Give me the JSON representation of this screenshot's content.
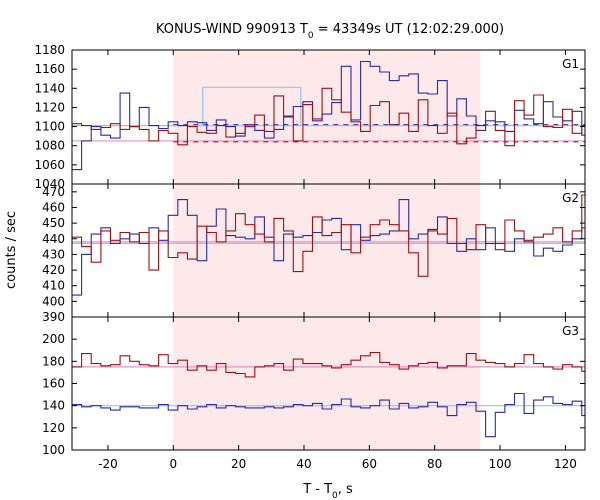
{
  "chart_data": {
    "type": "line",
    "title_main": "KONUS-WIND 990913 T",
    "title_sub": "0",
    "title_rest": " = 43349s UT (12:02:29.000)",
    "ylabel": "counts / sec",
    "xlabel_main": "T - T",
    "xlabel_sub": "0",
    "xlabel_rest": ", s",
    "xlim": [
      -31,
      126
    ],
    "xticks": [
      -20,
      0,
      20,
      40,
      60,
      80,
      100,
      120
    ],
    "xtick_labels": [
      "-20",
      "0",
      "20",
      "40",
      "60",
      "80",
      "100",
      "120"
    ],
    "highlight_interval": [
      0,
      94
    ],
    "colors": {
      "red": "#a01010",
      "blue": "#2a2aa8",
      "pink": "#e890c8",
      "cyan": "#90c8e8",
      "shade": "#fde8ea"
    },
    "panels": [
      {
        "name": "G1",
        "ylim": [
          1040,
          1180
        ],
        "yticks": [
          1040,
          1060,
          1080,
          1100,
          1120,
          1140,
          1160,
          1180
        ],
        "ytick_labels": [
          "1040",
          "1060",
          "1080",
          "1100",
          "1120",
          "1140",
          "1160",
          "1180"
        ],
        "x_start": -31,
        "bin_width": 2.944,
        "red_values": [
          1103,
          1101,
          1097,
          1099,
          1103,
          1097,
          1100,
          1097,
          1085,
          1096,
          1093,
          1081,
          1100,
          1094,
          1093,
          1101,
          1089,
          1093,
          1100,
          1112,
          1095,
          1132,
          1110,
          1085,
          1123,
          1108,
          1140,
          1128,
          1115,
          1105,
          1095,
          1122,
          1126,
          1102,
          1114,
          1095,
          1128,
          1101,
          1093,
          1114,
          1082,
          1088,
          1101,
          1116,
          1096,
          1080,
          1127,
          1112,
          1133,
          1100,
          1099,
          1118,
          1093,
          1101,
          1134,
          1130,
          1113,
          1101,
          1125,
          1096,
          1078,
          1083,
          1103,
          1080,
          1101,
          1096,
          1090,
          1092,
          1113,
          1110,
          1074,
          1090,
          1071,
          1108,
          1100,
          1090,
          1082,
          1081,
          1080,
          1093,
          1102,
          1094,
          1093,
          1083,
          1098
        ],
        "blue_values": [
          1055,
          1085,
          1100,
          1091,
          1088,
          1135,
          1100,
          1120,
          1101,
          1098,
          1105,
          1101,
          1105,
          1104,
          1096,
          1107,
          1100,
          1090,
          1102,
          1096,
          1088,
          1097,
          1111,
          1121,
          1126,
          1106,
          1113,
          1125,
          1163,
          1107,
          1168,
          1163,
          1157,
          1148,
          1153,
          1155,
          1135,
          1134,
          1148,
          1111,
          1129,
          1111,
          1096,
          1106,
          1105,
          1095,
          1117,
          1108,
          1103,
          1126,
          1110,
          1106,
          1116,
          1091,
          1100,
          1113,
          1101,
          1123,
          1122,
          1097,
          1101,
          1130,
          1116,
          1115,
          1098,
          1101,
          1115,
          1106,
          1098,
          1103,
          1112,
          1102,
          1093,
          1102,
          1097,
          1107,
          1101,
          1103,
          1100,
          1107,
          1095,
          1110,
          1101,
          1102,
          1101,
          1100
        ],
        "pink_level": 1085,
        "cyan_level": 1101,
        "red_dashed_level": 1084,
        "blue_dashed_level": 1102,
        "cyan_box": [
          9,
          39,
          1141
        ]
      },
      {
        "name": "G2",
        "ylim": [
          390,
          475
        ],
        "yticks": [
          390,
          400,
          410,
          420,
          430,
          440,
          450,
          460,
          470
        ],
        "ytick_labels": [
          "390",
          "400",
          "410",
          "420",
          "430",
          "440",
          "450",
          "460",
          "470"
        ],
        "x_start": -31,
        "bin_width": 2.944,
        "red_values": [
          441,
          435,
          425,
          445,
          439,
          444,
          438,
          444,
          420,
          445,
          428,
          431,
          427,
          448,
          444,
          438,
          445,
          456,
          449,
          443,
          438,
          453,
          445,
          419,
          432,
          454,
          442,
          444,
          449,
          431,
          441,
          449,
          452,
          449,
          445,
          431,
          416,
          445,
          443,
          453,
          437,
          433,
          449,
          437,
          433,
          452,
          445,
          439,
          441,
          443,
          447,
          438,
          445,
          468,
          440,
          447,
          437,
          440,
          446,
          438,
          440,
          454,
          440,
          447,
          434,
          440,
          434,
          444,
          446,
          454,
          449,
          433,
          441,
          426,
          436,
          441,
          436,
          440,
          444,
          441,
          451,
          444,
          439,
          444,
          446
        ],
        "blue_values": [
          404,
          430,
          443,
          447,
          437,
          440,
          443,
          437,
          447,
          439,
          455,
          465,
          455,
          426,
          448,
          459,
          442,
          441,
          440,
          454,
          441,
          426,
          443,
          441,
          442,
          444,
          452,
          453,
          433,
          449,
          439,
          442,
          443,
          445,
          465,
          440,
          443,
          446,
          454,
          437,
          432,
          440,
          433,
          447,
          437,
          432,
          440,
          438,
          429,
          434,
          432,
          436,
          440,
          447,
          446,
          444,
          438,
          452,
          446,
          445,
          443,
          443,
          442,
          433,
          442,
          444,
          440,
          434,
          441,
          437,
          440,
          428,
          467,
          459,
          433,
          434,
          441,
          438,
          443,
          424,
          446,
          439,
          438,
          438,
          438
        ],
        "pink_level": 438,
        "cyan_level": 437
      },
      {
        "name": "G3",
        "ylim": [
          100,
          220
        ],
        "yticks": [
          100,
          120,
          140,
          160,
          180,
          200
        ],
        "ytick_labels": [
          "100",
          "120",
          "140",
          "160",
          "180",
          "200"
        ],
        "x_start": -31,
        "bin_width": 2.944,
        "red_values": [
          175,
          187,
          178,
          176,
          177,
          185,
          180,
          177,
          176,
          186,
          178,
          181,
          172,
          176,
          172,
          178,
          170,
          169,
          166,
          175,
          176,
          178,
          172,
          182,
          178,
          178,
          176,
          174,
          177,
          181,
          185,
          188,
          179,
          177,
          173,
          176,
          178,
          179,
          174,
          176,
          176,
          187,
          181,
          179,
          178,
          175,
          178,
          186,
          178,
          175,
          173,
          177,
          175,
          171,
          179,
          180,
          183,
          175,
          172,
          178,
          175,
          175,
          170,
          169,
          175,
          172,
          180,
          173,
          175,
          177,
          172,
          174,
          178,
          175,
          175,
          183,
          178,
          170,
          175,
          178,
          172,
          176,
          173,
          175,
          172,
          162
        ],
        "blue_values": [
          141,
          139,
          140,
          138,
          136,
          139,
          139,
          138,
          138,
          141,
          136,
          140,
          137,
          139,
          141,
          138,
          140,
          139,
          138,
          138,
          139,
          138,
          139,
          141,
          140,
          142,
          137,
          141,
          146,
          139,
          138,
          140,
          145,
          137,
          142,
          138,
          139,
          143,
          139,
          131,
          141,
          143,
          135,
          112,
          134,
          141,
          151,
          133,
          145,
          148,
          142,
          141,
          144,
          131,
          143,
          129,
          131,
          146,
          136,
          131,
          139,
          152,
          131,
          146,
          138,
          132,
          146,
          139,
          146,
          131,
          141,
          139,
          136,
          131,
          147,
          142,
          139,
          138,
          144,
          141,
          141,
          139,
          138,
          140,
          139,
          137
        ],
        "pink_level": 175,
        "cyan_level": 140
      }
    ]
  }
}
